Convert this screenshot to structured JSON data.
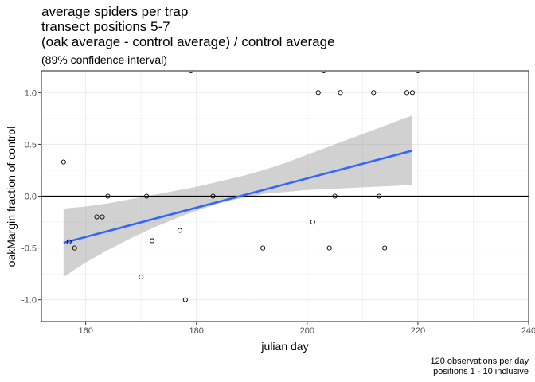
{
  "chart_data": {
    "type": "scatter",
    "title_lines": [
      "average spiders per trap",
      "transect positions 5-7",
      "(oak average - control average) / control average"
    ],
    "subtitle": "(89% confidence interval)",
    "xlabel": "julian day",
    "ylabel": "oakMargin fraction of control",
    "caption_lines": [
      "120 observations per day",
      "positions 1 - 10 inclusive"
    ],
    "xlim": [
      152,
      240
    ],
    "ylim": [
      -1.21,
      1.21
    ],
    "x_ticks": [
      160,
      180,
      200,
      220,
      240
    ],
    "y_ticks": [
      -1.0,
      -0.5,
      0.0,
      0.5,
      1.0
    ],
    "x_tick_labels": [
      "160",
      "180",
      "200",
      "220",
      "240"
    ],
    "y_tick_labels": [
      "-1.0",
      "-0.5",
      "0.0",
      "0.5",
      "1.0"
    ],
    "grid": true,
    "hline_y": 0,
    "points": [
      {
        "x": 156,
        "y": 0.33
      },
      {
        "x": 157,
        "y": -0.44
      },
      {
        "x": 158,
        "y": -0.5
      },
      {
        "x": 162,
        "y": -0.2
      },
      {
        "x": 163,
        "y": -0.2
      },
      {
        "x": 164,
        "y": 0.0
      },
      {
        "x": 170,
        "y": -0.78
      },
      {
        "x": 171,
        "y": 0.0
      },
      {
        "x": 172,
        "y": -0.43
      },
      {
        "x": 177,
        "y": -0.33
      },
      {
        "x": 178,
        "y": -1.0
      },
      {
        "x": 179,
        "y": 1.21
      },
      {
        "x": 183,
        "y": 0.0
      },
      {
        "x": 192,
        "y": -0.5
      },
      {
        "x": 201,
        "y": -0.25
      },
      {
        "x": 202,
        "y": 1.0
      },
      {
        "x": 203,
        "y": 1.21
      },
      {
        "x": 204,
        "y": -0.5
      },
      {
        "x": 205,
        "y": 0.0
      },
      {
        "x": 206,
        "y": 1.0
      },
      {
        "x": 212,
        "y": 1.0
      },
      {
        "x": 213,
        "y": 0.0
      },
      {
        "x": 214,
        "y": -0.5
      },
      {
        "x": 218,
        "y": 1.0
      },
      {
        "x": 219,
        "y": 1.0
      },
      {
        "x": 220,
        "y": 1.21
      }
    ],
    "fit_line": {
      "x": [
        156,
        219
      ],
      "y": [
        -0.45,
        0.44
      ],
      "color": "#3366ff"
    },
    "confidence_band": {
      "x": [
        156,
        160,
        164,
        168,
        172,
        176,
        180,
        184,
        188,
        192,
        196,
        200,
        204,
        208,
        212,
        216,
        219
      ],
      "upper": [
        -0.12,
        -0.1,
        -0.07,
        -0.03,
        0.01,
        0.05,
        0.09,
        0.14,
        0.19,
        0.25,
        0.32,
        0.4,
        0.48,
        0.56,
        0.64,
        0.72,
        0.78
      ],
      "lower": [
        -0.78,
        -0.64,
        -0.52,
        -0.41,
        -0.31,
        -0.22,
        -0.14,
        -0.07,
        -0.02,
        0.02,
        0.04,
        0.06,
        0.07,
        0.08,
        0.09,
        0.1,
        0.11
      ],
      "color": "#999999"
    }
  }
}
